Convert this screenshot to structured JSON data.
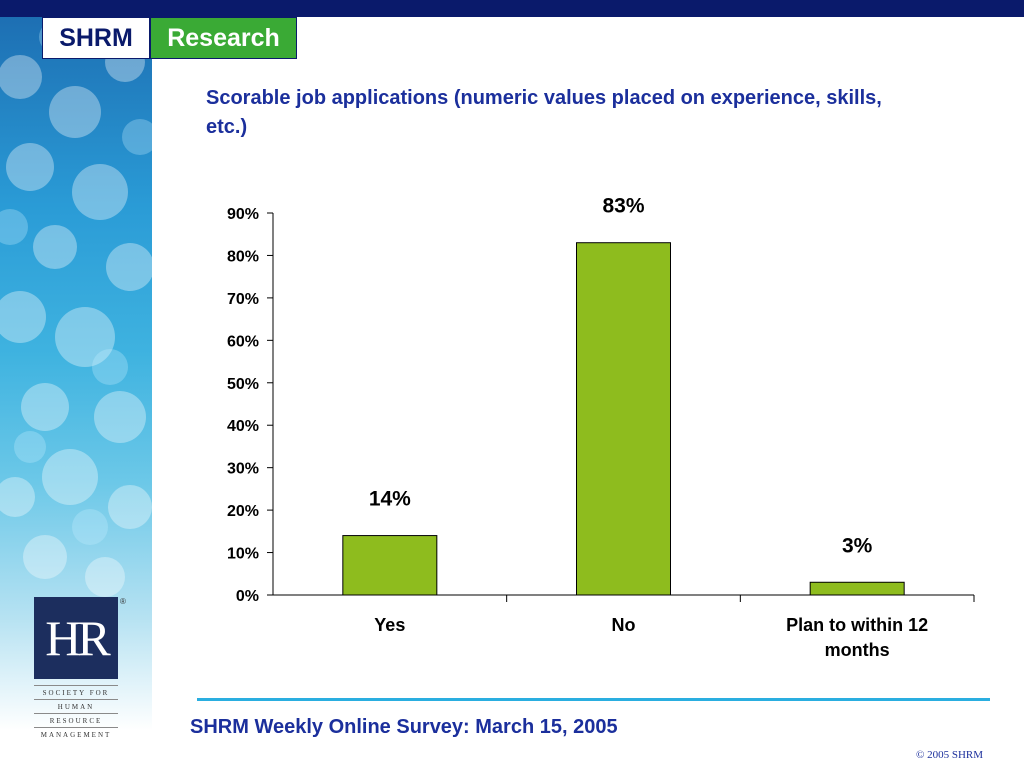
{
  "brand": {
    "shrm": "SHRM",
    "research": "Research"
  },
  "footer": {
    "survey": "SHRM Weekly Online Survey: March 15, 2005",
    "copyright": "© 2005 SHRM"
  },
  "logo": {
    "initials": "HR",
    "reg": "®",
    "lines": [
      "SOCIETY FOR",
      "HUMAN",
      "RESOURCE",
      "MANAGEMENT"
    ]
  },
  "colors": {
    "bar": "#8ebc1e",
    "title": "#1b2f9c",
    "top_bar": "#0a1a6b",
    "rule": "#2aaee0"
  },
  "chart_data": {
    "type": "bar",
    "title": "Scorable job applications (numeric values placed on experience, skills, etc.)",
    "categories": [
      "Yes",
      "No",
      "Plan to within 12 months"
    ],
    "values": [
      14,
      83,
      3
    ],
    "data_labels": [
      "14%",
      "83%",
      "3%"
    ],
    "ylim": [
      0,
      90
    ],
    "yticks": [
      "0%",
      "10%",
      "20%",
      "30%",
      "40%",
      "50%",
      "60%",
      "70%",
      "80%",
      "90%"
    ],
    "xlabel": "",
    "ylabel": "",
    "grid": false,
    "legend": "none"
  }
}
